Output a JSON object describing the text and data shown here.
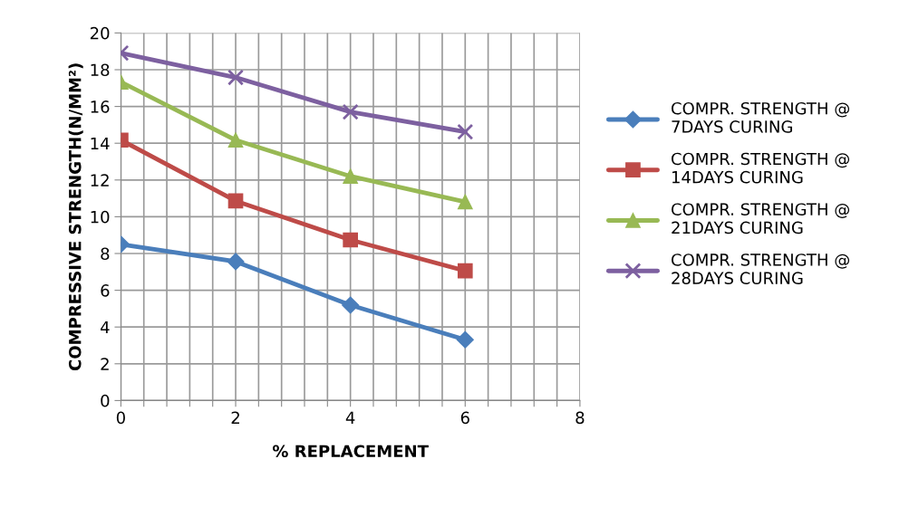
{
  "chart_data": {
    "type": "line",
    "xlabel": "% REPLACEMENT",
    "ylabel": "COMPRESSIVE STRENGTH(N/MM²)",
    "x": [
      0,
      2,
      4,
      6
    ],
    "series": [
      {
        "name": "COMPR. STRENGTH @\n7DAYS CURING",
        "color": "#4a7ebb",
        "marker": "diamond",
        "values": [
          8.5,
          7.56,
          5.19,
          3.31
        ]
      },
      {
        "name": "COMPR. STRENGTH @\n14DAYS CURING",
        "color": "#be4b48",
        "marker": "square",
        "values": [
          14.17,
          10.86,
          8.74,
          7.06
        ]
      },
      {
        "name": "COMPR. STRENGTH @\n21DAYS CURING",
        "color": "#98b954",
        "marker": "triangle",
        "values": [
          17.33,
          14.17,
          12.2,
          10.81
        ]
      },
      {
        "name": "COMPR. STRENGTH @\n28DAYS CURING",
        "color": "#7d60a0",
        "marker": "cross",
        "values": [
          18.91,
          17.58,
          15.7,
          14.62
        ]
      }
    ],
    "xlim": [
      0,
      8
    ],
    "xticks": [
      0,
      {
        "value": 0.4,
        "label": null
      },
      {
        "value": 0.8,
        "label": null
      },
      {
        "value": 1.2,
        "label": null
      },
      {
        "value": 1.6,
        "label": null
      },
      2,
      {
        "value": 2.4,
        "label": null
      },
      {
        "value": 2.8,
        "label": null
      },
      {
        "value": 3.2,
        "label": null
      },
      {
        "value": 3.6,
        "label": null
      },
      4,
      {
        "value": 4.4,
        "label": null
      },
      {
        "value": 4.8,
        "label": null
      },
      {
        "value": 5.2,
        "label": null
      },
      {
        "value": 5.6,
        "label": null
      },
      6,
      {
        "value": 6.4,
        "label": null
      },
      {
        "value": 6.8,
        "label": null
      },
      {
        "value": 7.2,
        "label": null
      },
      {
        "value": 7.6,
        "label": null
      },
      8
    ],
    "ylim": [
      0,
      20
    ],
    "yticks": [
      0,
      2,
      4,
      6,
      8,
      10,
      12,
      14,
      16,
      18,
      20
    ],
    "grid": true,
    "legend": "right",
    "line_style": "solid"
  }
}
